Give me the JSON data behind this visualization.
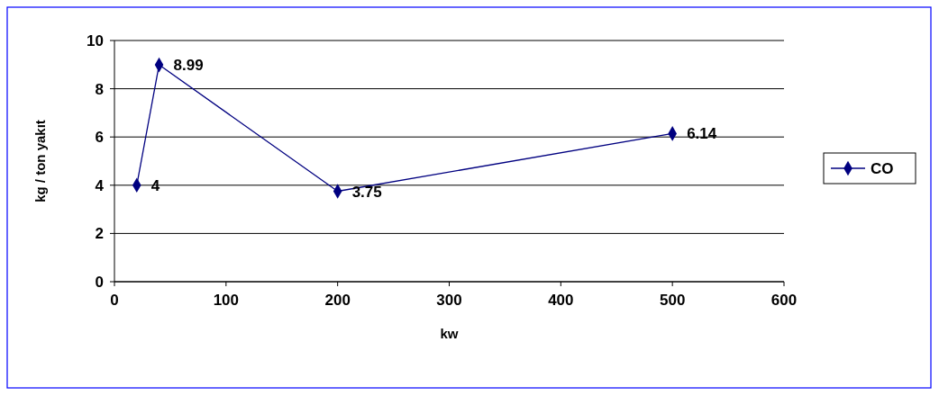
{
  "chart_data": {
    "type": "line",
    "xlabel": "kw",
    "ylabel": "kg / ton yakıt",
    "x": [
      20,
      40,
      200,
      500
    ],
    "series": [
      {
        "name": "CO",
        "color": "#000080",
        "values": [
          4,
          8.99,
          3.75,
          6.14
        ]
      }
    ],
    "xlim": [
      0,
      600
    ],
    "xticks": [
      0,
      100,
      200,
      300,
      400,
      500,
      600
    ],
    "ylim": [
      0,
      10
    ],
    "yticks": [
      0,
      2,
      4,
      6,
      8,
      10
    ],
    "grid": "y",
    "legend": "right",
    "marker": "diamond",
    "line_style": "solid",
    "data_labels": true
  }
}
